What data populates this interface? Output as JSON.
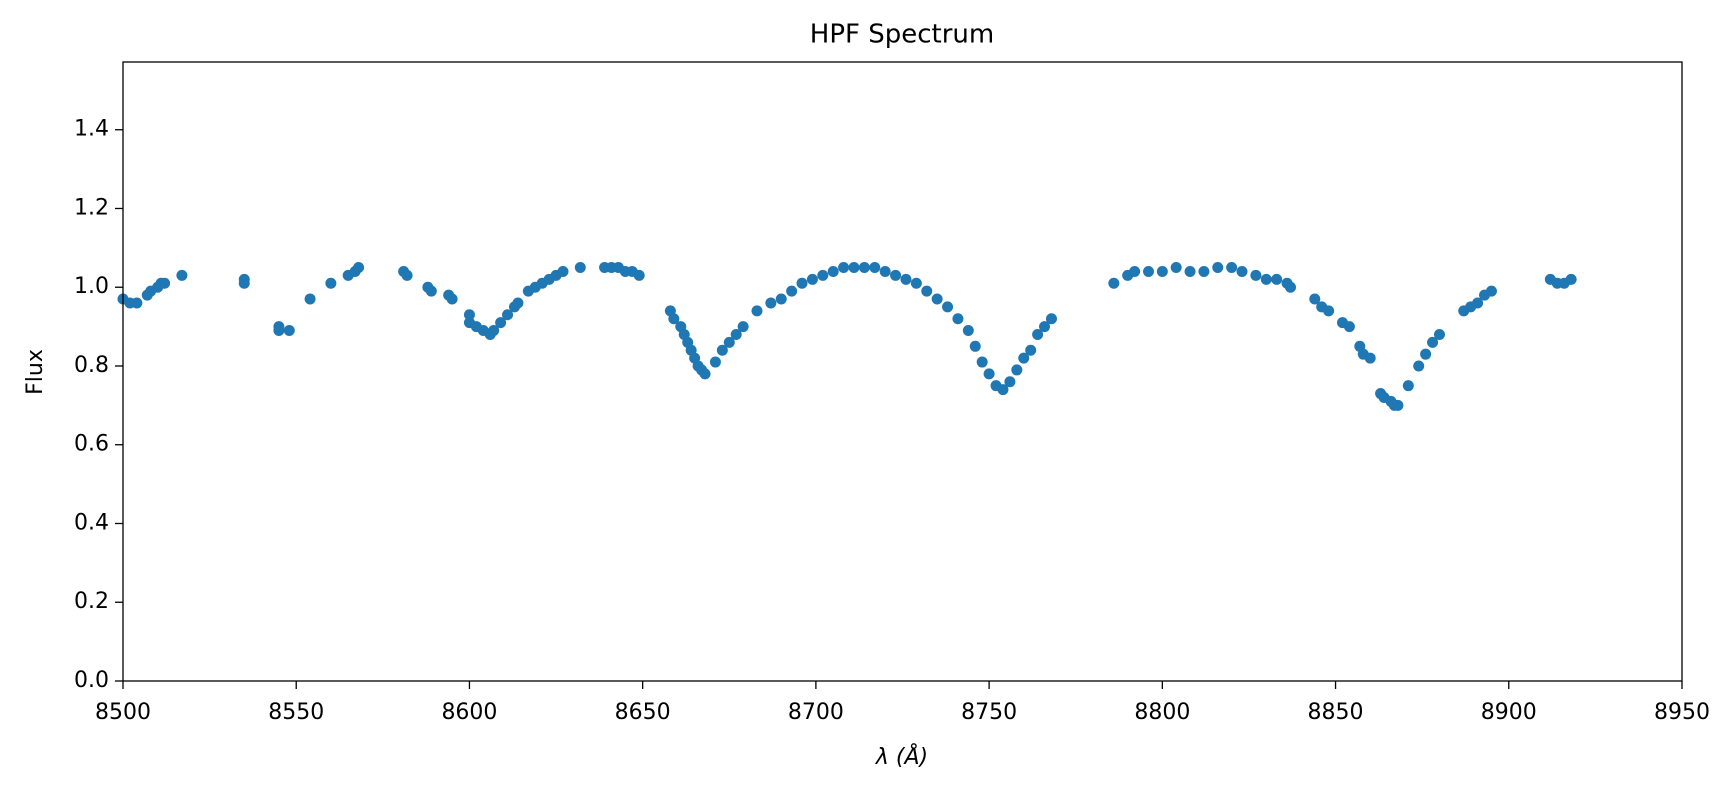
{
  "chart_data": {
    "type": "scatter",
    "title": "HPF Spectrum",
    "x_label": "λ (Å)",
    "y_label": "Flux",
    "color": "#1f77b4",
    "x": [
      8500,
      8502,
      8504,
      8507,
      8508,
      8510,
      8511,
      8512,
      8517,
      8535,
      8535,
      8545,
      8545,
      8548,
      8554,
      8560,
      8565,
      8567,
      8568,
      8581,
      8582,
      8588,
      8589,
      8594,
      8595,
      8600,
      8600,
      8602,
      8604,
      8606,
      8607,
      8609,
      8611,
      8613,
      8614,
      8617,
      8619,
      8621,
      8623,
      8625,
      8627,
      8632,
      8639,
      8641,
      8643,
      8645,
      8647,
      8649,
      8658,
      8659,
      8661,
      8662,
      8663,
      8664,
      8665,
      8666,
      8667,
      8668,
      8671,
      8673,
      8675,
      8677,
      8679,
      8683,
      8687,
      8690,
      8693,
      8696,
      8699,
      8702,
      8705,
      8708,
      8711,
      8714,
      8717,
      8720,
      8723,
      8726,
      8729,
      8732,
      8735,
      8738,
      8741,
      8744,
      8746,
      8748,
      8750,
      8752,
      8754,
      8756,
      8758,
      8760,
      8762,
      8764,
      8766,
      8768,
      8786,
      8790,
      8792,
      8796,
      8800,
      8804,
      8808,
      8812,
      8816,
      8820,
      8823,
      8827,
      8830,
      8833,
      8836,
      8837,
      8844,
      8846,
      8848,
      8852,
      8854,
      8857,
      8858,
      8860,
      8863,
      8864,
      8866,
      8867,
      8868,
      8871,
      8874,
      8876,
      8878,
      8880,
      8887,
      8889,
      8891,
      8893,
      8895,
      8912,
      8914,
      8916,
      8918
    ],
    "values": [
      0.97,
      0.96,
      0.96,
      0.98,
      0.99,
      1.0,
      1.01,
      1.01,
      1.03,
      1.02,
      1.01,
      0.9,
      0.89,
      0.89,
      0.97,
      1.01,
      1.03,
      1.04,
      1.05,
      1.04,
      1.03,
      1.0,
      0.99,
      0.98,
      0.97,
      0.93,
      0.91,
      0.9,
      0.89,
      0.88,
      0.89,
      0.91,
      0.93,
      0.95,
      0.96,
      0.99,
      1.0,
      1.01,
      1.02,
      1.03,
      1.04,
      1.05,
      1.05,
      1.05,
      1.05,
      1.04,
      1.04,
      1.03,
      0.94,
      0.92,
      0.9,
      0.88,
      0.86,
      0.84,
      0.82,
      0.8,
      0.79,
      0.78,
      0.81,
      0.84,
      0.86,
      0.88,
      0.9,
      0.94,
      0.96,
      0.97,
      0.99,
      1.01,
      1.02,
      1.03,
      1.04,
      1.05,
      1.05,
      1.05,
      1.05,
      1.04,
      1.03,
      1.02,
      1.01,
      0.99,
      0.97,
      0.95,
      0.92,
      0.89,
      0.85,
      0.81,
      0.78,
      0.75,
      0.74,
      0.76,
      0.79,
      0.82,
      0.84,
      0.88,
      0.9,
      0.92,
      1.01,
      1.03,
      1.04,
      1.04,
      1.04,
      1.05,
      1.04,
      1.04,
      1.05,
      1.05,
      1.04,
      1.03,
      1.02,
      1.02,
      1.01,
      1.0,
      0.97,
      0.95,
      0.94,
      0.91,
      0.9,
      0.85,
      0.83,
      0.82,
      0.73,
      0.72,
      0.71,
      0.7,
      0.7,
      0.75,
      0.8,
      0.83,
      0.86,
      0.88,
      0.94,
      0.95,
      0.96,
      0.98,
      0.99,
      1.02,
      1.01,
      1.01,
      1.02
    ],
    "xlim": [
      8500,
      8950
    ],
    "xticks": [
      8500,
      8550,
      8600,
      8650,
      8700,
      8750,
      8800,
      8850,
      8900,
      8950
    ],
    "ylim": [
      0,
      1.572
    ],
    "yticks": [
      {
        "value": 0,
        "label": "0.0"
      },
      0.2,
      0.4,
      0.6,
      0.8,
      {
        "value": 1,
        "label": "1.0"
      },
      1.2,
      1.4
    ]
  }
}
